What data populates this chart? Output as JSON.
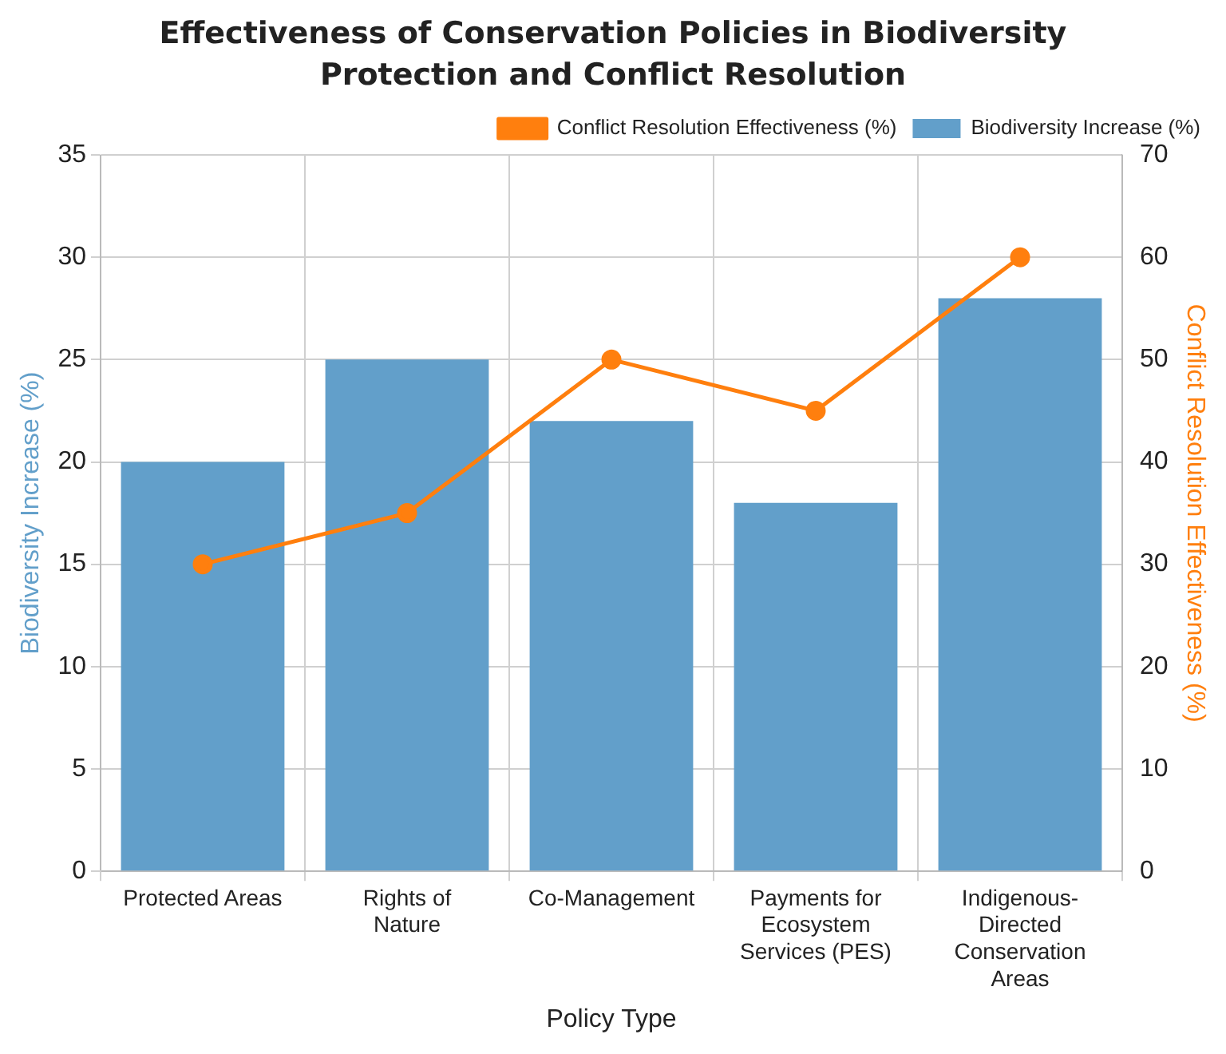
{
  "chart_data": {
    "type": "bar",
    "title": "Effectiveness of Conservation Policies in Biodiversity Protection and Conflict Resolution",
    "xlabel": "Policy Type",
    "ylabel": "Biodiversity Increase (%)",
    "y2label": "Conflict Resolution Effectiveness (%)",
    "categories": [
      "Protected Areas",
      "Rights of Nature",
      "Co-Management",
      "Payments for Ecosystem Services (PES)",
      "Indigenous-Directed Conservation Areas"
    ],
    "series": [
      {
        "name": "Conflict Resolution Effectiveness (%)",
        "type": "line",
        "axis": "y2",
        "color": "#ff7f0e",
        "values": [
          30,
          35,
          50,
          45,
          60
        ]
      },
      {
        "name": "Biodiversity Increase (%)",
        "color": "#629fca",
        "values": [
          20,
          25,
          22,
          18,
          28
        ]
      }
    ],
    "ylim": [
      0,
      35
    ],
    "yticks": [
      0,
      5,
      10,
      15,
      20,
      25,
      30,
      35
    ],
    "y2lim": [
      0,
      70
    ],
    "y2ticks": [
      0,
      10,
      20,
      30,
      40,
      50,
      60,
      70
    ],
    "grid": true,
    "legend": "top right",
    "marker": "circle",
    "line_style": "solid"
  }
}
